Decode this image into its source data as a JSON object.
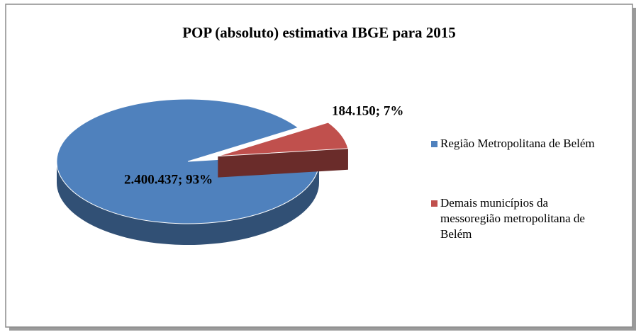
{
  "chart_data": {
    "type": "pie",
    "title": "POP (absoluto) estimativa IBGE para 2015",
    "categories": [
      "Região Metropolitana de Belém",
      "Demais municípios da messoregião metropolitana de Belém"
    ],
    "values": [
      2400437,
      184150
    ],
    "value_labels": [
      "2.400.437; 93%",
      "184.150; 7%"
    ],
    "colors": [
      "#4f81bd",
      "#c0504d"
    ],
    "legend": "right"
  }
}
